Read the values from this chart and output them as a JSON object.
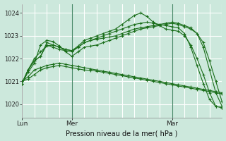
{
  "title": "",
  "xlabel": "Pression niveau de la mer( hPa )",
  "bg_color": "#cce8dc",
  "grid_minor_color": "#b8ddd0",
  "grid_major_color": "#ffffff",
  "vline_color": "#7ab090",
  "line_color": "#1a6e1a",
  "ylim": [
    1019.4,
    1024.4
  ],
  "xlim": [
    0,
    96
  ],
  "yticks": [
    1020,
    1021,
    1022,
    1023,
    1024
  ],
  "xtick_positions": [
    0,
    24,
    72
  ],
  "xtick_labels": [
    "Lun",
    "Mer",
    "Mar"
  ],
  "vlines": [
    24,
    72
  ],
  "series": [
    {
      "x": [
        0,
        3,
        6,
        9,
        12,
        15,
        18,
        21,
        24,
        27,
        30,
        33,
        36,
        39,
        42,
        45,
        48,
        51,
        54,
        57,
        60,
        63,
        66,
        69,
        72,
        75,
        78,
        81,
        84,
        87,
        90,
        93,
        96
      ],
      "y": [
        1021.0,
        1021.2,
        1021.5,
        1021.6,
        1021.7,
        1021.75,
        1021.8,
        1021.75,
        1021.7,
        1021.65,
        1021.6,
        1021.55,
        1021.5,
        1021.45,
        1021.4,
        1021.35,
        1021.3,
        1021.25,
        1021.2,
        1021.15,
        1021.1,
        1021.05,
        1021.0,
        1020.95,
        1020.9,
        1020.85,
        1020.8,
        1020.75,
        1020.7,
        1020.65,
        1020.6,
        1020.55,
        1020.5
      ]
    },
    {
      "x": [
        0,
        3,
        6,
        9,
        12,
        15,
        18,
        21,
        24,
        27,
        30,
        33,
        36,
        39,
        42,
        45,
        48,
        51,
        54,
        57,
        60,
        63,
        66,
        69,
        72,
        75,
        78,
        81,
        84,
        87,
        90,
        93,
        96
      ],
      "y": [
        1021.0,
        1021.1,
        1021.3,
        1021.5,
        1021.6,
        1021.65,
        1021.7,
        1021.65,
        1021.6,
        1021.55,
        1021.5,
        1021.48,
        1021.45,
        1021.4,
        1021.35,
        1021.3,
        1021.25,
        1021.2,
        1021.15,
        1021.1,
        1021.05,
        1021.0,
        1020.95,
        1020.9,
        1020.85,
        1020.8,
        1020.75,
        1020.7,
        1020.65,
        1020.6,
        1020.55,
        1020.5,
        1020.45
      ]
    },
    {
      "x": [
        0,
        3,
        6,
        9,
        12,
        15,
        18,
        21,
        24,
        27,
        30,
        33,
        36,
        39,
        42,
        45,
        48,
        51,
        54,
        57,
        60,
        63,
        66,
        69,
        72,
        75,
        78,
        81,
        84,
        87,
        90,
        93,
        96
      ],
      "y": [
        1020.9,
        1021.4,
        1021.8,
        1022.6,
        1022.8,
        1022.75,
        1022.55,
        1022.3,
        1022.1,
        1022.3,
        1022.5,
        1022.55,
        1022.6,
        1022.7,
        1022.8,
        1022.9,
        1023.0,
        1023.1,
        1023.2,
        1023.3,
        1023.35,
        1023.4,
        1023.45,
        1023.5,
        1023.55,
        1023.5,
        1023.4,
        1023.3,
        1023.1,
        1022.7,
        1021.9,
        1021.0,
        1020.1
      ]
    },
    {
      "x": [
        0,
        3,
        6,
        9,
        12,
        15,
        18,
        21,
        24,
        27,
        30,
        33,
        36,
        39,
        42,
        45,
        48,
        51,
        54,
        57,
        60,
        63,
        66,
        69,
        72,
        75,
        78,
        81,
        84,
        87,
        90,
        93,
        96
      ],
      "y": [
        1020.9,
        1021.5,
        1021.9,
        1022.1,
        1022.6,
        1022.5,
        1022.4,
        1022.35,
        1022.3,
        1022.5,
        1022.7,
        1022.8,
        1022.85,
        1022.9,
        1022.95,
        1023.0,
        1023.1,
        1023.2,
        1023.3,
        1023.35,
        1023.4,
        1023.45,
        1023.5,
        1023.55,
        1023.6,
        1023.55,
        1023.45,
        1023.35,
        1023.1,
        1022.5,
        1021.5,
        1020.5,
        1019.9
      ]
    },
    {
      "x": [
        0,
        3,
        6,
        9,
        12,
        15,
        18,
        21,
        24,
        27,
        30,
        33,
        36,
        39,
        42,
        45,
        48,
        51,
        54,
        57,
        60,
        63,
        66,
        69,
        72,
        75,
        78,
        81,
        84,
        87,
        90,
        93,
        96
      ],
      "y": [
        1020.9,
        1021.5,
        1021.9,
        1022.1,
        1022.7,
        1022.6,
        1022.5,
        1022.4,
        1022.35,
        1022.55,
        1022.8,
        1022.9,
        1023.0,
        1023.1,
        1023.2,
        1023.3,
        1023.5,
        1023.7,
        1023.9,
        1024.0,
        1023.85,
        1023.6,
        1023.45,
        1023.3,
        1023.25,
        1023.2,
        1023.0,
        1022.6,
        1022.0,
        1021.3,
        1020.5,
        1019.9,
        1019.85
      ]
    },
    {
      "x": [
        0,
        3,
        6,
        9,
        12,
        15,
        18,
        21,
        24,
        27,
        30,
        33,
        36,
        39,
        42,
        45,
        48,
        51,
        54,
        57,
        60,
        63,
        66,
        69,
        72,
        75,
        78,
        81,
        84,
        87,
        90,
        93,
        96
      ],
      "y": [
        1020.9,
        1021.5,
        1022.0,
        1022.3,
        1022.55,
        1022.6,
        1022.5,
        1022.4,
        1022.35,
        1022.5,
        1022.7,
        1022.8,
        1022.9,
        1023.0,
        1023.1,
        1023.2,
        1023.3,
        1023.4,
        1023.5,
        1023.55,
        1023.6,
        1023.55,
        1023.5,
        1023.45,
        1023.4,
        1023.35,
        1023.1,
        1022.5,
        1021.7,
        1020.9,
        1020.2,
        1019.9,
        1019.85
      ]
    }
  ]
}
